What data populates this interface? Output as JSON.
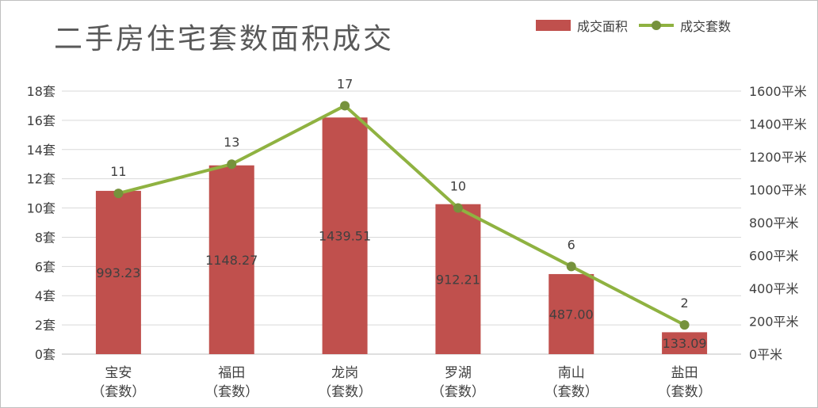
{
  "chart_data": {
    "type": "bar",
    "title": "二手房住宅套数面积成交",
    "categories": [
      [
        "宝安",
        "（套数）"
      ],
      [
        "福田",
        "（套数）"
      ],
      [
        "龙岗",
        "（套数）"
      ],
      [
        "罗湖",
        "（套数）"
      ],
      [
        "南山",
        "（套数）"
      ],
      [
        "盐田",
        "（套数）"
      ]
    ],
    "series": [
      {
        "name": "成交面积",
        "type": "bar",
        "axis": "right",
        "color": "#c0504d",
        "values": [
          993.23,
          1148.27,
          1439.51,
          912.21,
          487.0,
          133.09
        ],
        "labels": [
          "993.23",
          "1148.27",
          "1439.51",
          "912.21",
          "487.00",
          "133.09"
        ]
      },
      {
        "name": "成交套数",
        "type": "line",
        "axis": "left",
        "color": "#8fb241",
        "values": [
          11,
          13,
          17,
          10,
          6,
          2
        ],
        "labels": [
          "11",
          "13",
          "17",
          "10",
          "6",
          "2"
        ]
      }
    ],
    "left_axis": {
      "min": 0,
      "max": 18,
      "step": 2,
      "ticks": [
        "0套",
        "2套",
        "4套",
        "6套",
        "8套",
        "10套",
        "12套",
        "14套",
        "16套",
        "18套"
      ]
    },
    "right_axis": {
      "min": 0,
      "max": 1600,
      "step": 200,
      "ticks": [
        "0平米",
        "200平米",
        "400平米",
        "600平米",
        "800平米",
        "1000平米",
        "1200平米",
        "1400平米",
        "1600平米"
      ]
    },
    "grid": true,
    "legend_position": "top-right"
  }
}
